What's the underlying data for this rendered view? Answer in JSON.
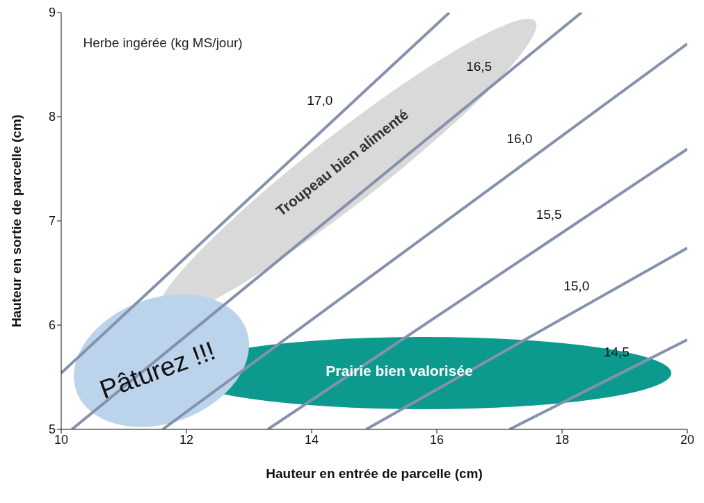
{
  "chart_data": {
    "type": "line",
    "xlabel": "Hauteur en entrée de parcelle (cm)",
    "ylabel": "Hauteur en sortie de parcelle (cm)",
    "series": [
      {
        "name": "17,0",
        "color": "#8492ab",
        "x": [
          10,
          16.2
        ],
        "values": [
          5.54,
          9
        ]
      },
      {
        "name": "16,5",
        "color": "#8492ab",
        "x": [
          10.17,
          18.31
        ],
        "values": [
          5,
          9
        ]
      },
      {
        "name": "16,0",
        "color": "#8492ab",
        "x": [
          11.62,
          20
        ],
        "values": [
          5,
          8.7
        ]
      },
      {
        "name": "15,5",
        "color": "#8492ab",
        "x": [
          13.3,
          20
        ],
        "values": [
          5,
          7.69
        ]
      },
      {
        "name": "15,0",
        "color": "#8492ab",
        "x": [
          14.87,
          20
        ],
        "values": [
          5,
          6.74
        ]
      },
      {
        "name": "14,5",
        "color": "#8492ab",
        "x": [
          17.16,
          20
        ],
        "values": [
          5,
          5.86
        ]
      }
    ],
    "xlim": [
      10,
      20
    ],
    "xticks": [
      10,
      12,
      14,
      16,
      18,
      20
    ],
    "ylim": [
      5,
      9
    ],
    "yticks": [
      5,
      6,
      7,
      8,
      9
    ],
    "grid": false,
    "legend": false,
    "marker": "none",
    "line_style": "solid",
    "annotations": [
      "Herbe ingérée (kg MS/jour)",
      "Troupeau bien alimenté",
      "Prairie bien valorisée",
      "Pâturez !!!"
    ]
  }
}
